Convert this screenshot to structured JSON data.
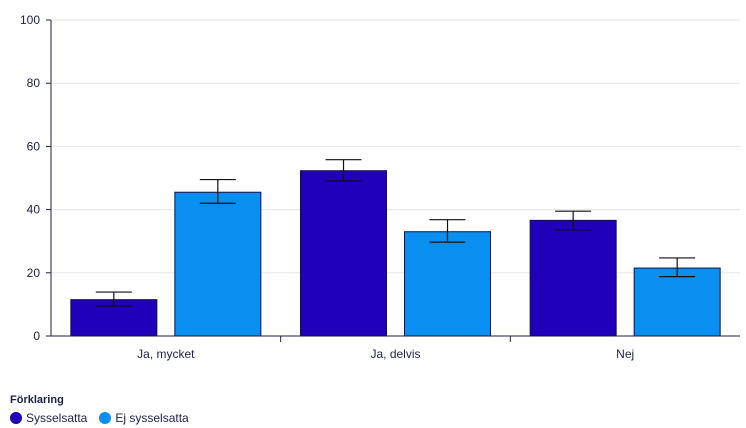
{
  "chart_data": {
    "type": "bar",
    "categories": [
      "Ja, mycket",
      "Ja, delvis",
      "Nej"
    ],
    "series": [
      {
        "name": "Sysselsatta",
        "color": "#2000b8",
        "values": [
          11.5,
          52.3,
          36.6
        ],
        "error_low": [
          9.5,
          49.0,
          33.6
        ],
        "error_high": [
          13.9,
          55.8,
          39.5
        ]
      },
      {
        "name": "Ej sysselsatta",
        "color": "#0a8ff0",
        "values": [
          45.5,
          33.0,
          21.5
        ],
        "error_low": [
          42.0,
          29.7,
          18.8
        ],
        "error_high": [
          49.5,
          36.8,
          24.7
        ]
      }
    ],
    "ylim": [
      0,
      100
    ],
    "yticks": [
      0,
      20,
      40,
      60,
      80,
      100
    ],
    "grid": true,
    "legend_position": "bottom-left"
  },
  "legend": {
    "title": "Förklaring",
    "items": [
      {
        "label": "Sysselsatta",
        "color": "#2000b8"
      },
      {
        "label": "Ej sysselsatta",
        "color": "#0a8ff0"
      }
    ]
  }
}
